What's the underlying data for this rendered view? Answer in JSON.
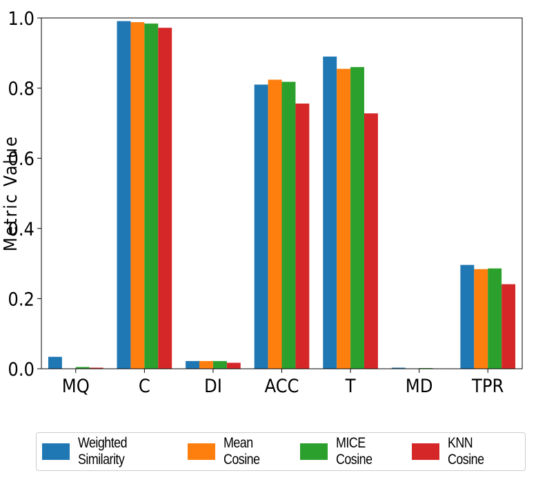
{
  "chart_data": {
    "type": "bar",
    "title": "",
    "xlabel": "",
    "ylabel": "Metric Value",
    "ylim": [
      0,
      1.0
    ],
    "yticks": [
      "0.0",
      "0.2",
      "0.4",
      "0.6",
      "0.8",
      "1.0"
    ],
    "categories": [
      "MQ",
      "C",
      "DI",
      "ACC",
      "T",
      "MD",
      "TPR"
    ],
    "series": [
      {
        "name": "Weighted Similarity",
        "color": "#1f77b4",
        "values": [
          0.034,
          0.991,
          0.022,
          0.81,
          0.89,
          0.003,
          0.296
        ]
      },
      {
        "name": "Mean Cosine",
        "color": "#ff7f0e",
        "values": [
          0.001,
          0.988,
          0.022,
          0.824,
          0.855,
          0.001,
          0.284
        ]
      },
      {
        "name": "MICE Cosine",
        "color": "#2ca02c",
        "values": [
          0.005,
          0.984,
          0.022,
          0.818,
          0.86,
          0.002,
          0.286
        ]
      },
      {
        "name": "KNN Cosine",
        "color": "#d62728",
        "values": [
          0.003,
          0.972,
          0.017,
          0.756,
          0.728,
          0.001,
          0.241
        ]
      }
    ],
    "legend_position": "bottom"
  }
}
